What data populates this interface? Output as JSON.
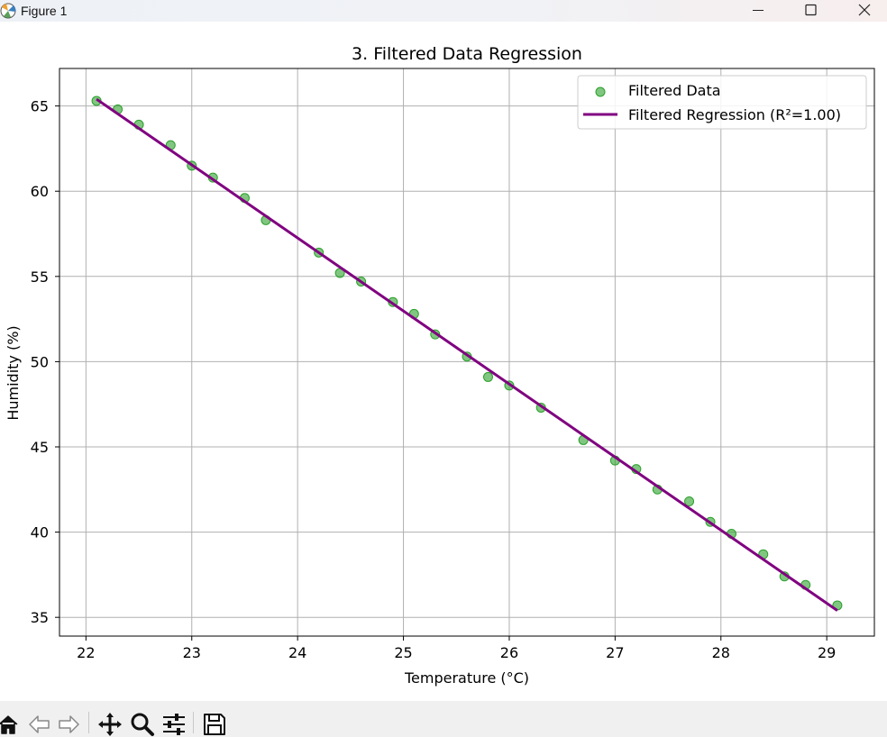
{
  "window": {
    "title": "Figure 1",
    "minimize_icon": "minimize-icon",
    "maximize_icon": "maximize-icon",
    "close_icon": "close-icon"
  },
  "toolbar": {
    "buttons": [
      {
        "name": "home-icon"
      },
      {
        "name": "back-arrow-icon"
      },
      {
        "name": "forward-arrow-icon"
      },
      {
        "name": "pan-move-icon"
      },
      {
        "name": "zoom-magnifier-icon"
      },
      {
        "name": "configure-subplots-icon"
      },
      {
        "name": "save-floppy-icon"
      }
    ]
  },
  "colors": {
    "scatter": "#2ca02c",
    "regression": "#800080",
    "grid": "#b0b0b0"
  },
  "chart_data": {
    "type": "scatter",
    "title": "3. Filtered Data Regression",
    "xlabel": "Temperature (°C)",
    "ylabel": "Humidity (%)",
    "xlim": [
      21.75,
      29.45
    ],
    "ylim": [
      33.9,
      67.2
    ],
    "xticks": [
      22,
      23,
      24,
      25,
      26,
      27,
      28,
      29
    ],
    "yticks": [
      35,
      40,
      45,
      50,
      55,
      60,
      65
    ],
    "grid": true,
    "legend_position": "top-right",
    "series": [
      {
        "name": "Filtered Data",
        "kind": "scatter",
        "color": "#2ca02c",
        "x": [
          22.1,
          22.3,
          22.5,
          22.8,
          23.0,
          23.2,
          23.5,
          23.7,
          24.2,
          24.4,
          24.6,
          24.9,
          25.1,
          25.3,
          25.6,
          25.8,
          26.0,
          26.3,
          26.7,
          27.0,
          27.2,
          27.4,
          27.7,
          27.9,
          28.1,
          28.4,
          28.6,
          28.8,
          29.1
        ],
        "y": [
          65.3,
          64.8,
          63.9,
          62.7,
          61.5,
          60.8,
          59.6,
          58.3,
          56.4,
          55.2,
          54.7,
          53.5,
          52.8,
          51.6,
          50.3,
          49.1,
          48.6,
          47.3,
          45.4,
          44.2,
          43.7,
          42.5,
          41.8,
          40.6,
          39.9,
          38.7,
          37.4,
          36.9,
          35.7
        ]
      },
      {
        "name": "Filtered Regression (R²=1.00)",
        "kind": "line",
        "color": "#800080",
        "x": [
          22.1,
          29.1
        ],
        "y": [
          65.4,
          35.4
        ]
      }
    ]
  }
}
